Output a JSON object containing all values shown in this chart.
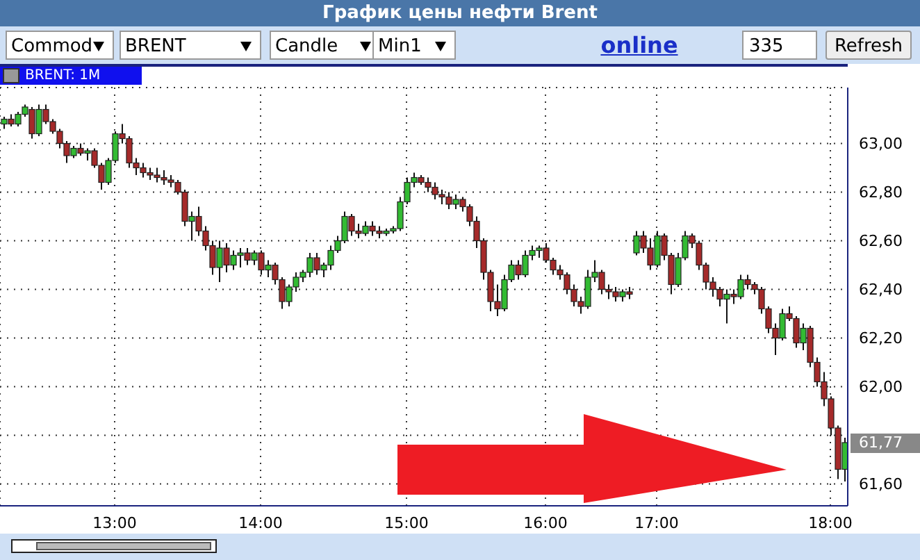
{
  "chart_data": {
    "type": "candlestick",
    "title": "График цены нефти Brent",
    "subtitle": "BRENT: 1M",
    "annotations": [
      "Commod",
      "BRENT",
      "Candle",
      "Min1",
      "online",
      "335",
      "Refresh",
      "61,77"
    ],
    "categories": [
      null,
      null,
      null,
      null,
      null,
      null,
      null,
      null,
      null,
      null,
      null,
      null,
      null,
      null,
      null,
      null,
      "13:00",
      null,
      null,
      null,
      null,
      null,
      null,
      null,
      null,
      null,
      null,
      null,
      null,
      null,
      null,
      null,
      null,
      null,
      null,
      null,
      null,
      "14:00",
      null,
      null,
      null,
      null,
      null,
      null,
      null,
      null,
      null,
      null,
      null,
      null,
      null,
      null,
      null,
      null,
      null,
      null,
      null,
      null,
      "15:00",
      null,
      null,
      null,
      null,
      null,
      null,
      null,
      null,
      null,
      null,
      null,
      null,
      null,
      null,
      null,
      null,
      null,
      null,
      null,
      "16:00",
      null,
      null,
      null,
      null,
      null,
      null,
      null,
      null,
      null,
      null,
      null,
      null,
      null,
      null,
      null,
      "17:00",
      null,
      null,
      null,
      null,
      null,
      null,
      null,
      null,
      null,
      null,
      null,
      null,
      null,
      null,
      null,
      null,
      null,
      null,
      null,
      null,
      null,
      null,
      null,
      null,
      "18:00",
      null,
      null
    ],
    "ohlc": [
      [
        63.08,
        63.11,
        63.06,
        63.1
      ],
      [
        63.1,
        63.12,
        63.07,
        63.08
      ],
      [
        63.08,
        63.13,
        63.07,
        63.12
      ],
      [
        63.12,
        63.16,
        63.11,
        63.15
      ],
      [
        63.14,
        63.15,
        63.02,
        63.04
      ],
      [
        63.04,
        63.16,
        63.03,
        63.14
      ],
      [
        63.14,
        63.16,
        63.08,
        63.09
      ],
      [
        63.09,
        63.1,
        63.04,
        63.05
      ],
      [
        63.05,
        63.06,
        62.98,
        63.0
      ],
      [
        63.0,
        63.01,
        62.92,
        62.95
      ],
      [
        62.95,
        62.99,
        62.94,
        62.98
      ],
      [
        62.98,
        63.0,
        62.95,
        62.96
      ],
      [
        62.96,
        62.98,
        62.93,
        62.97
      ],
      [
        62.97,
        62.98,
        62.9,
        62.91
      ],
      [
        62.91,
        62.92,
        62.81,
        62.84
      ],
      [
        62.84,
        62.94,
        62.83,
        62.93
      ],
      [
        62.93,
        63.05,
        62.92,
        63.04
      ],
      [
        63.04,
        63.08,
        63.0,
        63.02
      ],
      [
        63.02,
        63.03,
        62.9,
        62.92
      ],
      [
        62.92,
        62.94,
        62.87,
        62.9
      ],
      [
        62.9,
        62.92,
        62.86,
        62.88
      ],
      [
        62.88,
        62.9,
        62.85,
        62.87
      ],
      [
        62.87,
        62.9,
        62.84,
        62.86
      ],
      [
        62.86,
        62.89,
        62.83,
        62.85
      ],
      [
        62.85,
        62.87,
        62.82,
        62.84
      ],
      [
        62.84,
        62.85,
        62.79,
        62.8
      ],
      [
        62.8,
        62.81,
        62.66,
        62.68
      ],
      [
        62.68,
        62.72,
        62.6,
        62.7
      ],
      [
        62.7,
        62.74,
        62.62,
        62.64
      ],
      [
        62.64,
        62.66,
        62.56,
        62.58
      ],
      [
        62.58,
        62.6,
        62.46,
        62.49
      ],
      [
        62.49,
        62.6,
        62.43,
        62.57
      ],
      [
        62.57,
        62.59,
        62.47,
        62.5
      ],
      [
        62.5,
        62.56,
        62.48,
        62.54
      ],
      [
        62.54,
        62.57,
        62.49,
        62.55
      ],
      [
        62.55,
        62.57,
        62.5,
        62.52
      ],
      [
        62.52,
        62.56,
        62.5,
        62.55
      ],
      [
        62.55,
        62.56,
        62.46,
        62.48
      ],
      [
        62.48,
        62.52,
        62.45,
        62.5
      ],
      [
        62.5,
        62.51,
        62.42,
        62.44
      ],
      [
        62.44,
        62.45,
        62.32,
        62.35
      ],
      [
        62.35,
        62.42,
        62.33,
        62.41
      ],
      [
        62.41,
        62.47,
        62.39,
        62.45
      ],
      [
        62.45,
        62.48,
        62.43,
        62.47
      ],
      [
        62.47,
        62.55,
        62.45,
        62.53
      ],
      [
        62.53,
        62.55,
        62.46,
        62.48
      ],
      [
        62.48,
        62.51,
        62.45,
        62.5
      ],
      [
        62.5,
        62.58,
        62.48,
        62.56
      ],
      [
        62.56,
        62.62,
        62.55,
        62.6
      ],
      [
        62.6,
        62.72,
        62.59,
        62.7
      ],
      [
        62.7,
        62.71,
        62.62,
        62.64
      ],
      [
        62.64,
        62.67,
        62.61,
        62.63
      ],
      [
        62.63,
        62.68,
        62.62,
        62.66
      ],
      [
        62.66,
        62.68,
        62.62,
        62.64
      ],
      [
        62.64,
        62.66,
        62.61,
        62.63
      ],
      [
        62.63,
        62.65,
        62.62,
        62.64
      ],
      [
        62.64,
        62.66,
        62.63,
        62.65
      ],
      [
        62.65,
        62.78,
        62.64,
        62.76
      ],
      [
        62.76,
        62.86,
        62.75,
        62.84
      ],
      [
        62.84,
        62.88,
        62.82,
        62.86
      ],
      [
        62.86,
        62.87,
        62.83,
        62.84
      ],
      [
        62.84,
        62.86,
        62.8,
        62.82
      ],
      [
        62.82,
        62.84,
        62.77,
        62.79
      ],
      [
        62.79,
        62.81,
        62.75,
        62.78
      ],
      [
        62.78,
        62.8,
        62.73,
        62.75
      ],
      [
        62.75,
        62.79,
        62.73,
        62.77
      ],
      [
        62.77,
        62.78,
        62.72,
        62.74
      ],
      [
        62.74,
        62.75,
        62.66,
        62.68
      ],
      [
        62.68,
        62.7,
        62.57,
        62.6
      ],
      [
        62.6,
        62.61,
        62.44,
        62.47
      ],
      [
        62.47,
        62.48,
        62.31,
        62.35
      ],
      [
        62.35,
        62.42,
        62.29,
        62.32
      ],
      [
        62.32,
        62.46,
        62.31,
        62.44
      ],
      [
        62.44,
        62.52,
        62.43,
        62.5
      ],
      [
        62.5,
        62.52,
        62.44,
        62.46
      ],
      [
        62.46,
        62.56,
        62.45,
        62.54
      ],
      [
        62.54,
        62.58,
        62.52,
        62.56
      ],
      [
        62.56,
        62.58,
        62.53,
        62.57
      ],
      [
        62.57,
        62.59,
        62.51,
        62.52
      ],
      [
        62.52,
        62.53,
        62.46,
        62.48
      ],
      [
        62.48,
        62.5,
        62.44,
        62.46
      ],
      [
        62.46,
        62.47,
        62.38,
        62.4
      ],
      [
        62.4,
        62.42,
        62.33,
        62.35
      ],
      [
        62.35,
        62.37,
        62.3,
        62.33
      ],
      [
        62.33,
        62.48,
        62.32,
        62.45
      ],
      [
        62.45,
        62.52,
        62.43,
        62.47
      ],
      [
        62.47,
        62.48,
        62.38,
        62.4
      ],
      [
        62.4,
        62.42,
        62.36,
        62.39
      ],
      [
        62.39,
        62.41,
        62.35,
        62.37
      ],
      [
        62.37,
        62.4,
        62.35,
        62.39
      ],
      [
        62.39,
        62.41,
        62.36,
        62.38
      ],
      [
        62.55,
        62.64,
        62.54,
        62.62
      ],
      [
        62.62,
        62.64,
        62.55,
        62.57
      ],
      [
        62.57,
        62.61,
        62.48,
        62.5
      ],
      [
        62.5,
        62.64,
        62.49,
        62.62
      ],
      [
        62.62,
        62.63,
        62.52,
        62.54
      ],
      [
        62.54,
        62.55,
        62.38,
        62.42
      ],
      [
        62.42,
        62.55,
        62.41,
        62.53
      ],
      [
        62.53,
        62.64,
        62.52,
        62.62
      ],
      [
        62.62,
        62.63,
        62.57,
        62.59
      ],
      [
        62.59,
        62.6,
        62.48,
        62.5
      ],
      [
        62.5,
        62.51,
        62.4,
        62.43
      ],
      [
        62.43,
        62.45,
        62.37,
        62.4
      ],
      [
        62.4,
        62.41,
        62.33,
        62.36
      ],
      [
        62.36,
        62.4,
        62.26,
        62.38
      ],
      [
        62.38,
        62.4,
        62.34,
        62.37
      ],
      [
        62.37,
        62.46,
        62.36,
        62.44
      ],
      [
        62.44,
        62.46,
        62.4,
        62.42
      ],
      [
        62.42,
        62.43,
        62.38,
        62.4
      ],
      [
        62.4,
        62.41,
        62.3,
        62.32
      ],
      [
        62.32,
        62.33,
        62.22,
        62.24
      ],
      [
        62.24,
        62.26,
        62.13,
        62.2
      ],
      [
        62.2,
        62.32,
        62.19,
        62.3
      ],
      [
        62.3,
        62.33,
        62.27,
        62.28
      ],
      [
        62.28,
        62.29,
        62.16,
        62.18
      ],
      [
        62.18,
        62.26,
        62.15,
        62.24
      ],
      [
        62.24,
        62.25,
        62.08,
        62.1
      ],
      [
        62.1,
        62.12,
        62.0,
        62.02
      ],
      [
        62.02,
        62.06,
        61.92,
        61.95
      ],
      [
        61.95,
        61.96,
        61.8,
        61.83
      ],
      [
        61.83,
        61.84,
        61.62,
        61.66
      ],
      [
        61.66,
        61.79,
        61.61,
        61.77
      ]
    ],
    "colors": [
      "#33bb33",
      "#a52a2a",
      "#33bb33",
      "#33bb33",
      "#a52a2a",
      "#33bb33",
      "#a52a2a",
      "#a52a2a",
      "#a52a2a",
      "#a52a2a",
      "#33bb33",
      "#a52a2a",
      "#33bb33",
      "#a52a2a",
      "#a52a2a",
      "#33bb33",
      "#33bb33",
      "#a52a2a",
      "#a52a2a",
      "#a52a2a",
      "#a52a2a",
      "#a52a2a",
      "#a52a2a",
      "#a52a2a",
      "#a52a2a",
      "#a52a2a",
      "#a52a2a",
      "#33bb33",
      "#a52a2a",
      "#a52a2a",
      "#a52a2a",
      "#33bb33",
      "#a52a2a",
      "#33bb33",
      "#33bb33",
      "#a52a2a",
      "#33bb33",
      "#a52a2a",
      "#33bb33",
      "#a52a2a",
      "#a52a2a",
      "#33bb33",
      "#33bb33",
      "#33bb33",
      "#33bb33",
      "#a52a2a",
      "#33bb33",
      "#33bb33",
      "#33bb33",
      "#33bb33",
      "#a52a2a",
      "#a52a2a",
      "#33bb33",
      "#a52a2a",
      "#a52a2a",
      "#33bb33",
      "#33bb33",
      "#33bb33",
      "#33bb33",
      "#33bb33",
      "#a52a2a",
      "#a52a2a",
      "#a52a2a",
      "#a52a2a",
      "#a52a2a",
      "#33bb33",
      "#a52a2a",
      "#a52a2a",
      "#a52a2a",
      "#a52a2a",
      "#a52a2a",
      "#a52a2a",
      "#33bb33",
      "#33bb33",
      "#a52a2a",
      "#33bb33",
      "#33bb33",
      "#33bb33",
      "#a52a2a",
      "#a52a2a",
      "#a52a2a",
      "#a52a2a",
      "#a52a2a",
      "#a52a2a",
      "#33bb33",
      "#33bb33",
      "#a52a2a",
      "#a52a2a",
      "#a52a2a",
      "#33bb33",
      "#a52a2a",
      "#33bb33",
      "#a52a2a",
      "#a52a2a",
      "#33bb33",
      "#a52a2a",
      "#a52a2a",
      "#33bb33",
      "#33bb33",
      "#a52a2a",
      "#a52a2a",
      "#a52a2a",
      "#a52a2a",
      "#a52a2a",
      "#33bb33",
      "#a52a2a",
      "#33bb33",
      "#a52a2a",
      "#a52a2a",
      "#a52a2a",
      "#a52a2a",
      "#a52a2a",
      "#33bb33",
      "#a52a2a",
      "#a52a2a",
      "#33bb33",
      "#a52a2a",
      "#a52a2a",
      "#a52a2a",
      "#a52a2a",
      "#a52a2a",
      "#33bb33"
    ],
    "ylim": [
      61.51,
      63.23
    ],
    "yticks": [
      {
        "value": 61.6,
        "label": "61,60"
      },
      {
        "value": 61.8,
        "label": null
      },
      {
        "value": 62.0,
        "label": "62,00"
      },
      {
        "value": 62.2,
        "label": "62,20"
      },
      {
        "value": 62.4,
        "label": "62,40"
      },
      {
        "value": 62.6,
        "label": "62,60"
      },
      {
        "value": 62.8,
        "label": "62,80"
      },
      {
        "value": 63.0,
        "label": "63,00"
      }
    ],
    "grid": true
  }
}
